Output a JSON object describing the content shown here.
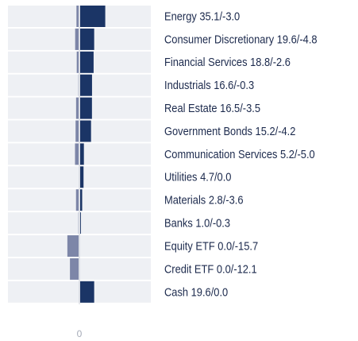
{
  "chart_data": {
    "type": "bar",
    "labels": [
      "Energy 35.1/-3.0",
      "Consumer Discretionary 19.6/-4.8",
      "Financial Services 18.8/-2.6",
      "Industrials 16.6/-0.3",
      "Real Estate 16.5/-3.5",
      "Government Bonds 15.2/-4.2",
      "Communication Services 5.2/-5.0",
      "Utilities 4.7/0.0",
      "Materials 2.8/-3.6",
      "Banks 1.0/-0.3",
      "Equity ETF 0.0/-15.7",
      "Credit ETF 0.0/-12.1",
      "Cash 19.6/0.0"
    ],
    "series": [
      {
        "color": "#1b3566",
        "values": [
          35.1,
          19.6,
          18.8,
          16.6,
          16.5,
          15.2,
          5.2,
          4.7,
          2.8,
          1.0,
          0.0,
          0.0,
          19.6
        ]
      },
      {
        "color": "#7d86a8",
        "values": [
          -3.0,
          -4.8,
          -2.6,
          -0.3,
          -3.5,
          -4.2,
          -5.0,
          0.0,
          -3.6,
          -0.3,
          -15.7,
          -12.1,
          0.0
        ]
      }
    ],
    "xlim": [
      -100,
      100
    ],
    "xticks": [
      0
    ]
  }
}
